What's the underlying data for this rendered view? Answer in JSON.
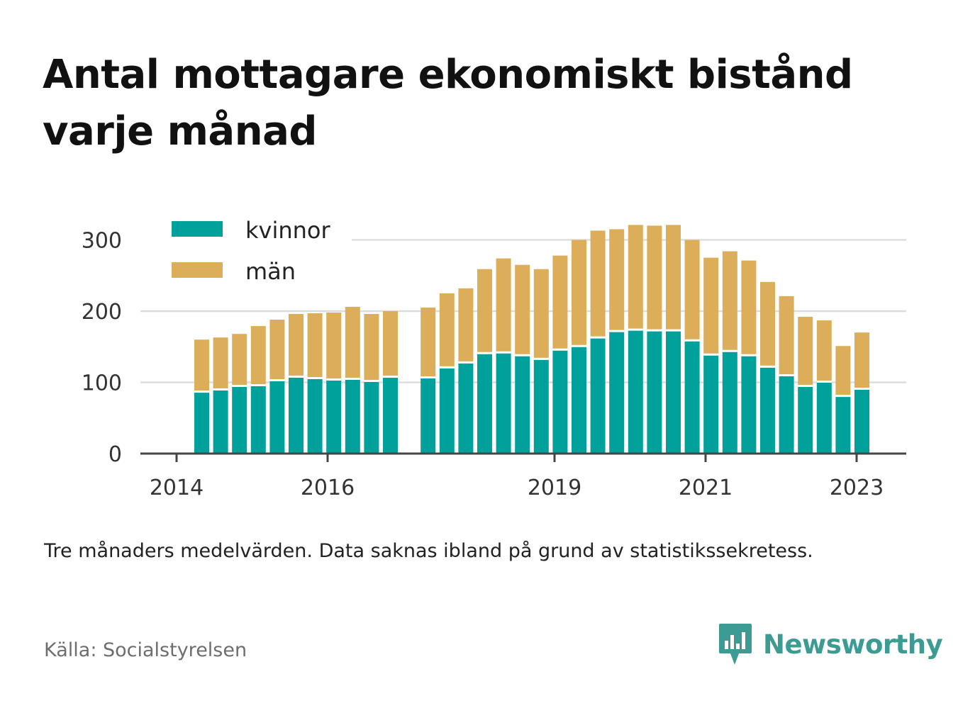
{
  "title": "Antal mottagare ekonomiskt bistånd varje månad",
  "note": "Tre månaders medelvärden. Data saknas ibland på grund av statistikssekretess.",
  "source": "Källa: Socialstyrelsen",
  "brand": {
    "name": "Newsworthy",
    "icon": "newsworthy-logo-icon",
    "color": "#3c9b93"
  },
  "chart_data": {
    "type": "bar",
    "stacked": true,
    "title": "Antal mottagare ekonomiskt bistånd varje månad",
    "xlabel": "",
    "ylabel": "",
    "ylim": [
      0,
      330
    ],
    "yticks": [
      0,
      100,
      200,
      300
    ],
    "xticks": [
      "2014",
      "2016",
      "2019",
      "2021",
      "2023"
    ],
    "grid": true,
    "legend": "top-left",
    "categories": [
      "2014 Q2",
      "2014 Q3",
      "2014 Q4",
      "2015 Q1",
      "2015 Q2",
      "2015 Q3",
      "2015 Q4",
      "2016 Q1",
      "2016 Q2",
      "2016 Q3",
      "2016 Q4",
      "2017 Q1",
      "2017 Q2",
      "2017 Q3",
      "2017 Q4",
      "2018 Q1",
      "2018 Q2",
      "2018 Q3",
      "2018 Q4",
      "2019 Q1",
      "2019 Q2",
      "2019 Q3",
      "2019 Q4",
      "2020 Q1",
      "2020 Q2",
      "2020 Q3",
      "2020 Q4",
      "2021 Q1",
      "2021 Q2",
      "2021 Q3",
      "2021 Q4",
      "2022 Q1",
      "2022 Q2",
      "2022 Q3",
      "2022 Q4",
      "2023 Q1"
    ],
    "series": [
      {
        "name": "kvinnor",
        "color": "#00a19a",
        "values": [
          87,
          90,
          95,
          96,
          103,
          108,
          106,
          104,
          105,
          102,
          108,
          null,
          107,
          121,
          128,
          141,
          142,
          138,
          133,
          146,
          151,
          163,
          172,
          174,
          173,
          173,
          159,
          139,
          144,
          138,
          122,
          110,
          95,
          101,
          81,
          91
        ]
      },
      {
        "name": "män",
        "color": "#dcae5a",
        "values": [
          73,
          73,
          73,
          83,
          85,
          88,
          91,
          94,
          101,
          94,
          92,
          null,
          98,
          104,
          104,
          118,
          132,
          127,
          126,
          132,
          149,
          150,
          143,
          147,
          147,
          148,
          141,
          136,
          140,
          133,
          119,
          111,
          97,
          86,
          70,
          79
        ]
      }
    ]
  }
}
